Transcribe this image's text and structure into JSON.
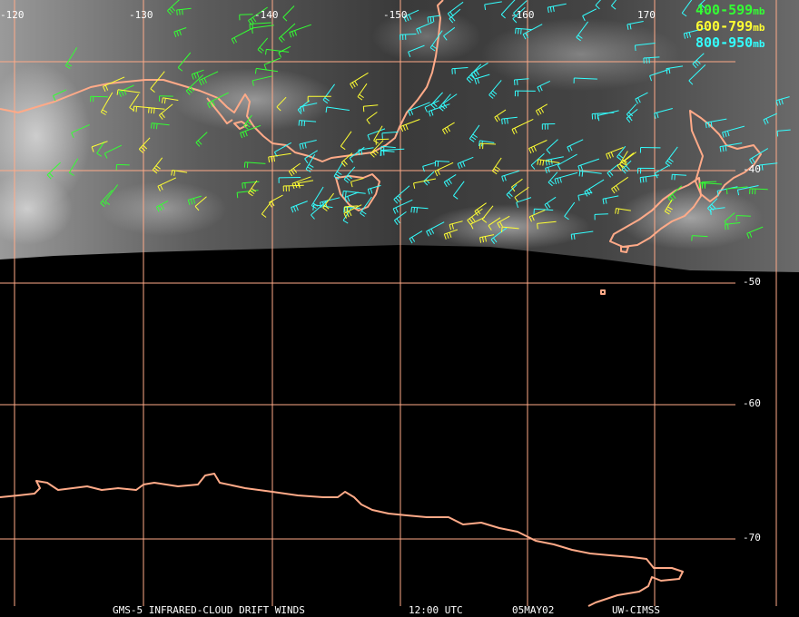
{
  "map": {
    "longitude_labels": [
      "-120",
      "-130",
      "-140",
      "-150",
      "-160",
      "170"
    ],
    "latitude_labels": [
      "-40",
      "-50",
      "-60",
      "-70"
    ]
  },
  "legend": [
    {
      "range": "400-599",
      "unit": "mb",
      "color": "#33ff33"
    },
    {
      "range": "600-799",
      "unit": "mb",
      "color": "#ffff33"
    },
    {
      "range": "800-950",
      "unit": "mb",
      "color": "#33ffff"
    }
  ],
  "colors": {
    "coastline": "#ffaa88",
    "grid": "#ffaa88",
    "green_barb": "#33ff33",
    "yellow_barb": "#ffff33",
    "cyan_barb": "#33ffff"
  },
  "footer": {
    "product": "GMS-5 INFRARED-CLOUD DRIFT WINDS",
    "time": "12:00 UTC",
    "date": "05MAY02",
    "source": "UW-CIMSS"
  }
}
